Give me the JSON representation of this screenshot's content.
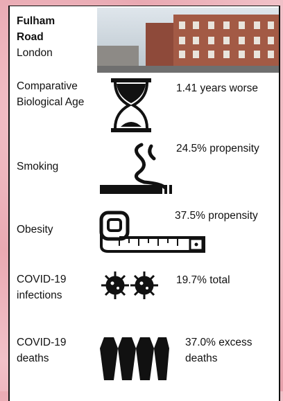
{
  "header": {
    "title": "Fulham Road",
    "place": "London"
  },
  "rows": [
    {
      "label": "Comparative Biological Age",
      "value": "1.41 years worse"
    },
    {
      "label": "Smoking",
      "value": "24.5% propensity"
    },
    {
      "label": "Obesity",
      "value": "37.5% propensity"
    },
    {
      "label": "COVID-19 infections",
      "value": "19.7% total"
    },
    {
      "label": "COVID-19 deaths",
      "value": "37.0% excess deaths"
    }
  ]
}
